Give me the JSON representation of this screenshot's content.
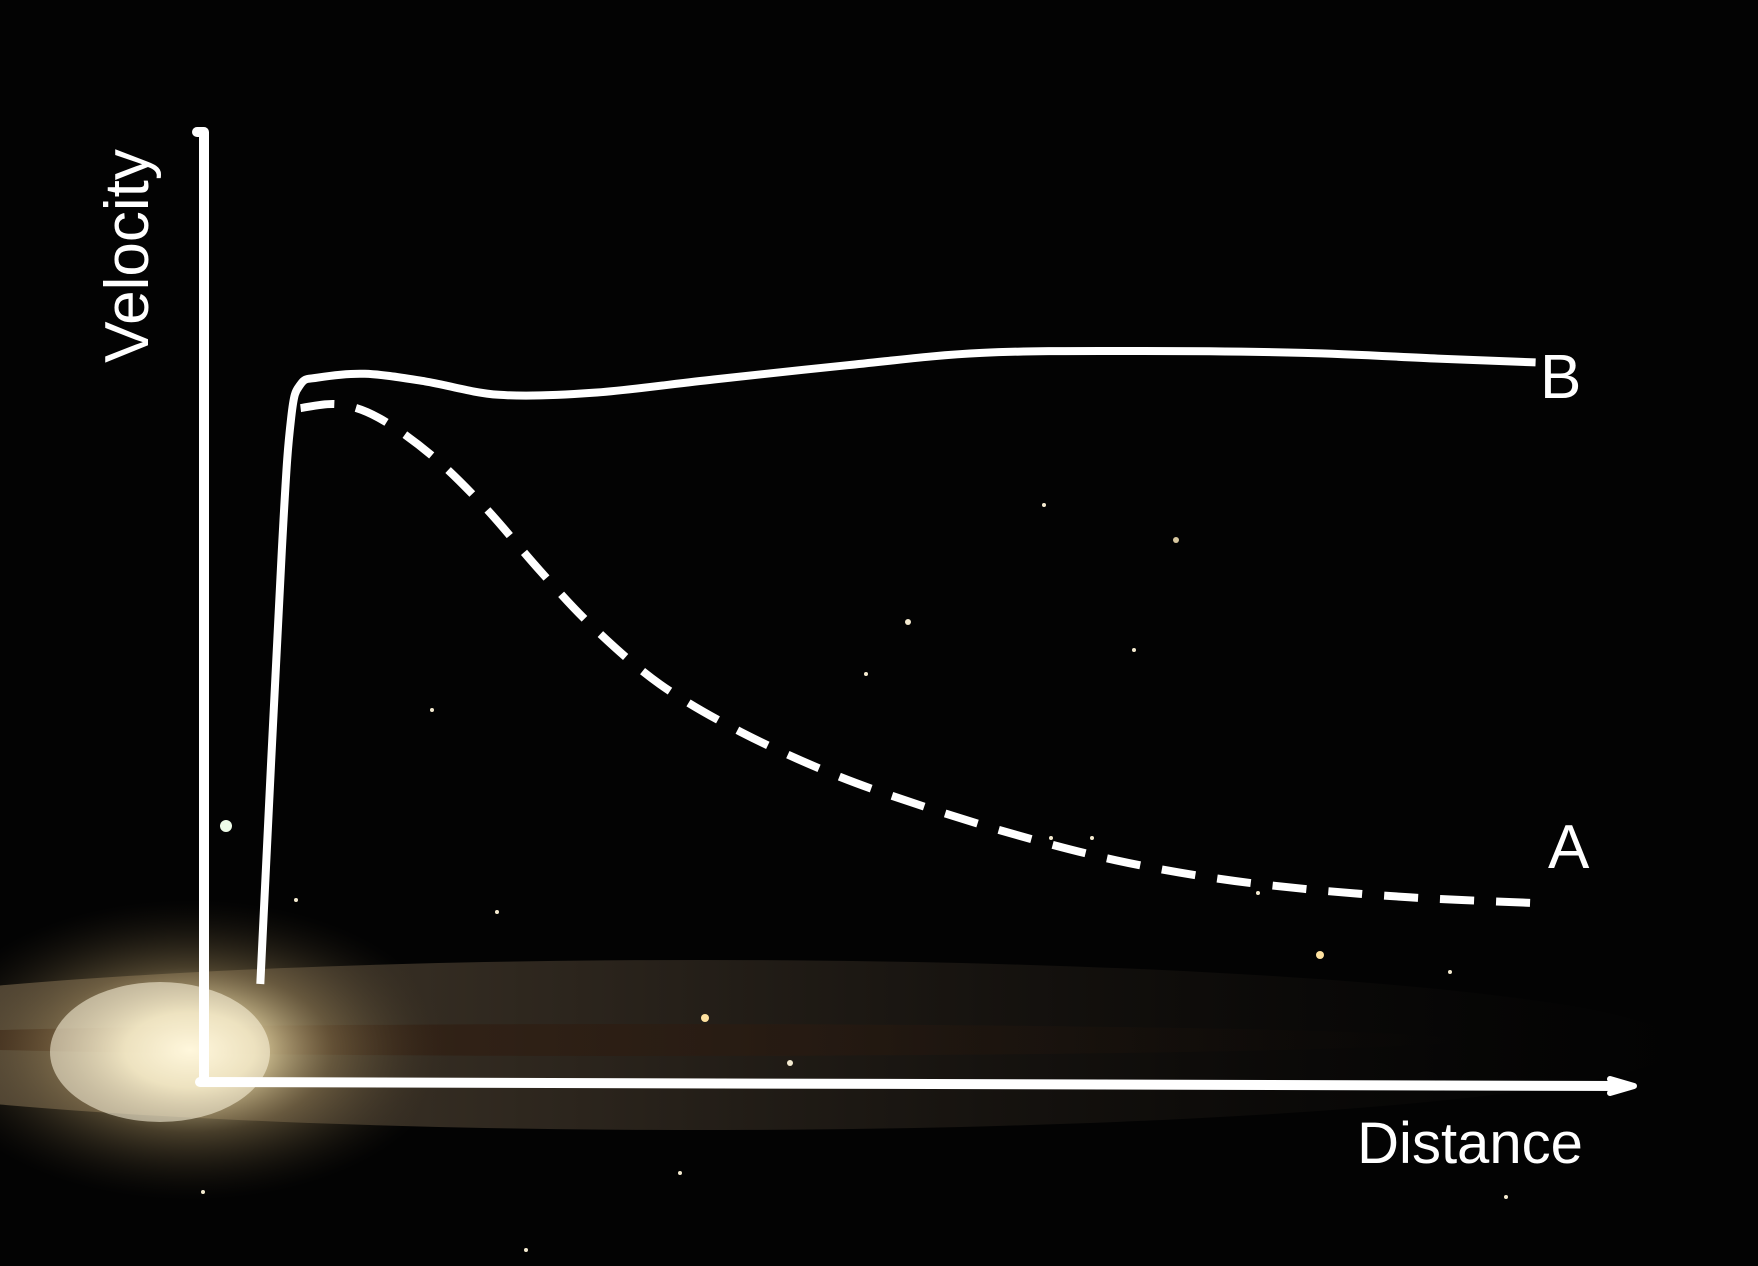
{
  "chart_data": {
    "type": "line",
    "title": "",
    "xlabel": "Distance",
    "ylabel": "Velocity",
    "xlim": [
      0,
      1
    ],
    "ylim": [
      0,
      1
    ],
    "grid": false,
    "x_ticks": false,
    "y_ticks": false,
    "series": [
      {
        "name": "B",
        "style": "solid",
        "color": "#ffffff",
        "x": [
          0.042,
          0.058,
          0.065,
          0.072,
          0.085,
          0.12,
          0.165,
          0.22,
          0.29,
          0.38,
          0.48,
          0.58,
          0.7,
          0.82,
          0.92,
          0.993
        ],
        "y": [
          0.105,
          0.56,
          0.7,
          0.735,
          0.742,
          0.746,
          0.738,
          0.724,
          0.726,
          0.74,
          0.755,
          0.768,
          0.77,
          0.768,
          0.762,
          0.758
        ]
      },
      {
        "name": "A",
        "style": "dashed",
        "color": "#ffffff",
        "x": [
          0.072,
          0.1,
          0.13,
          0.17,
          0.21,
          0.25,
          0.29,
          0.34,
          0.4,
          0.47,
          0.54,
          0.61,
          0.68,
          0.75,
          0.82,
          0.9,
          0.993
        ],
        "y": [
          0.71,
          0.714,
          0.7,
          0.66,
          0.605,
          0.54,
          0.48,
          0.42,
          0.37,
          0.325,
          0.29,
          0.26,
          0.235,
          0.217,
          0.205,
          0.196,
          0.19
        ]
      }
    ]
  }
}
